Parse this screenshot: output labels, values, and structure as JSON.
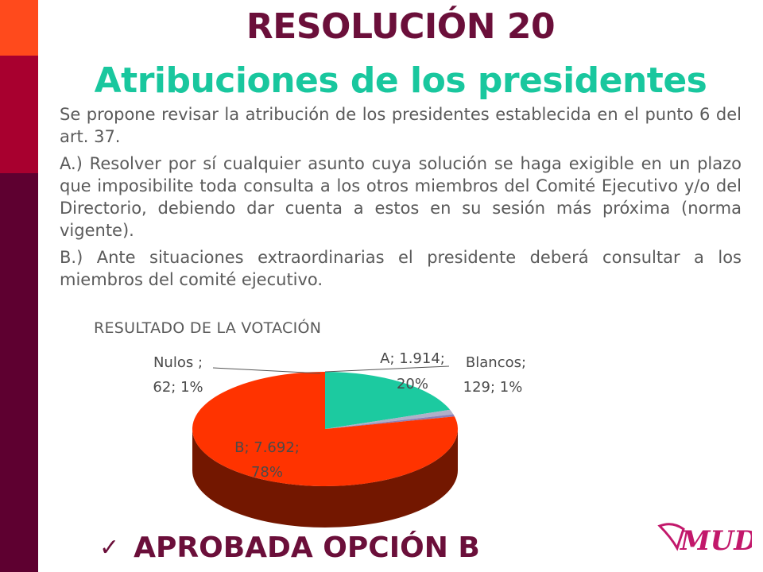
{
  "slide": {
    "title": "RESOLUCIÓN 20",
    "subtitle": "Atribuciones de los presidentes",
    "paragraphs": [
      "Se propone revisar la atribución de los presidentes establecida en el punto 6 del art. 37.",
      "A.) Resolver por sí cualquier asunto cuya solución se haga exigible en un plazo que imposibilite toda consulta a los otros miembros del Comité Ejecutivo y/o del Directorio, debiendo dar cuenta a estos en su sesión más próxima (norma vigente).",
      "B.)  Ante situaciones extraordinarias el presidente deberá consultar a los miembros del comité ejecutivo."
    ],
    "verdict": "APROBADA OPCIÓN B",
    "check_icon": "✓",
    "logo_text": "MUD",
    "colors": {
      "bar_top": "#ff4a1c",
      "bar_mid": "#a8002f",
      "bar_bottom": "#5e0030",
      "title": "#6b0f3a",
      "subtitle": "#19c79e"
    }
  },
  "chart_data": {
    "type": "pie",
    "title": "RESULTADO DE LA VOTACIÓN",
    "style": "3d",
    "slices": [
      {
        "name": "A",
        "value": 1914,
        "value_label": "1.914",
        "percent": "20%",
        "color": "#1ccaa0"
      },
      {
        "name": "Blancos",
        "value": 129,
        "value_label": "129",
        "percent": "1%",
        "color": "#b0b0c8"
      },
      {
        "name": "Nulos",
        "value": 62,
        "value_label": "62",
        "percent": "1%",
        "color": "#8a7fb8"
      },
      {
        "name": "B",
        "value": 7692,
        "value_label": "7.692",
        "percent": "78%",
        "color": "#ff3300"
      }
    ],
    "labels": {
      "A": [
        "A; 1.914;",
        "20%"
      ],
      "Blancos": [
        "Blancos;",
        "129; 1%"
      ],
      "Nulos": [
        "Nulos ;",
        "62; 1%"
      ],
      "B": [
        "B; 7.692;",
        "78%"
      ]
    }
  }
}
